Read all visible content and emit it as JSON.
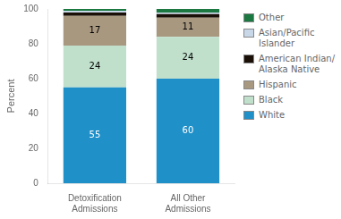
{
  "chart_data": {
    "type": "bar",
    "stacked": true,
    "categories": [
      "Detoxification\nAdmissions",
      "All Other\nAdmissions"
    ],
    "series": [
      {
        "name": "White",
        "color": "#2090c8",
        "values": [
          55,
          60
        ],
        "data_labels": true
      },
      {
        "name": "Black",
        "color": "#c0e0cc",
        "values": [
          24,
          24
        ],
        "data_labels": true
      },
      {
        "name": "Hispanic",
        "color": "#a89880",
        "values": [
          17,
          11
        ],
        "data_labels": true
      },
      {
        "name": "American Indian/\nAlaska Native",
        "color": "#1a1008",
        "values": [
          2,
          2
        ]
      },
      {
        "name": "Asian/Pacific\nIslander",
        "color": "#c8d8e8",
        "values": [
          1,
          1
        ]
      },
      {
        "name": "Other",
        "color": "#1a7840",
        "values": [
          1,
          2
        ]
      }
    ],
    "ylabel": "Percent",
    "ylim": [
      0,
      100
    ],
    "yticks": [
      0,
      20,
      40,
      60,
      80,
      100
    ],
    "grid": false,
    "legend": "right"
  }
}
